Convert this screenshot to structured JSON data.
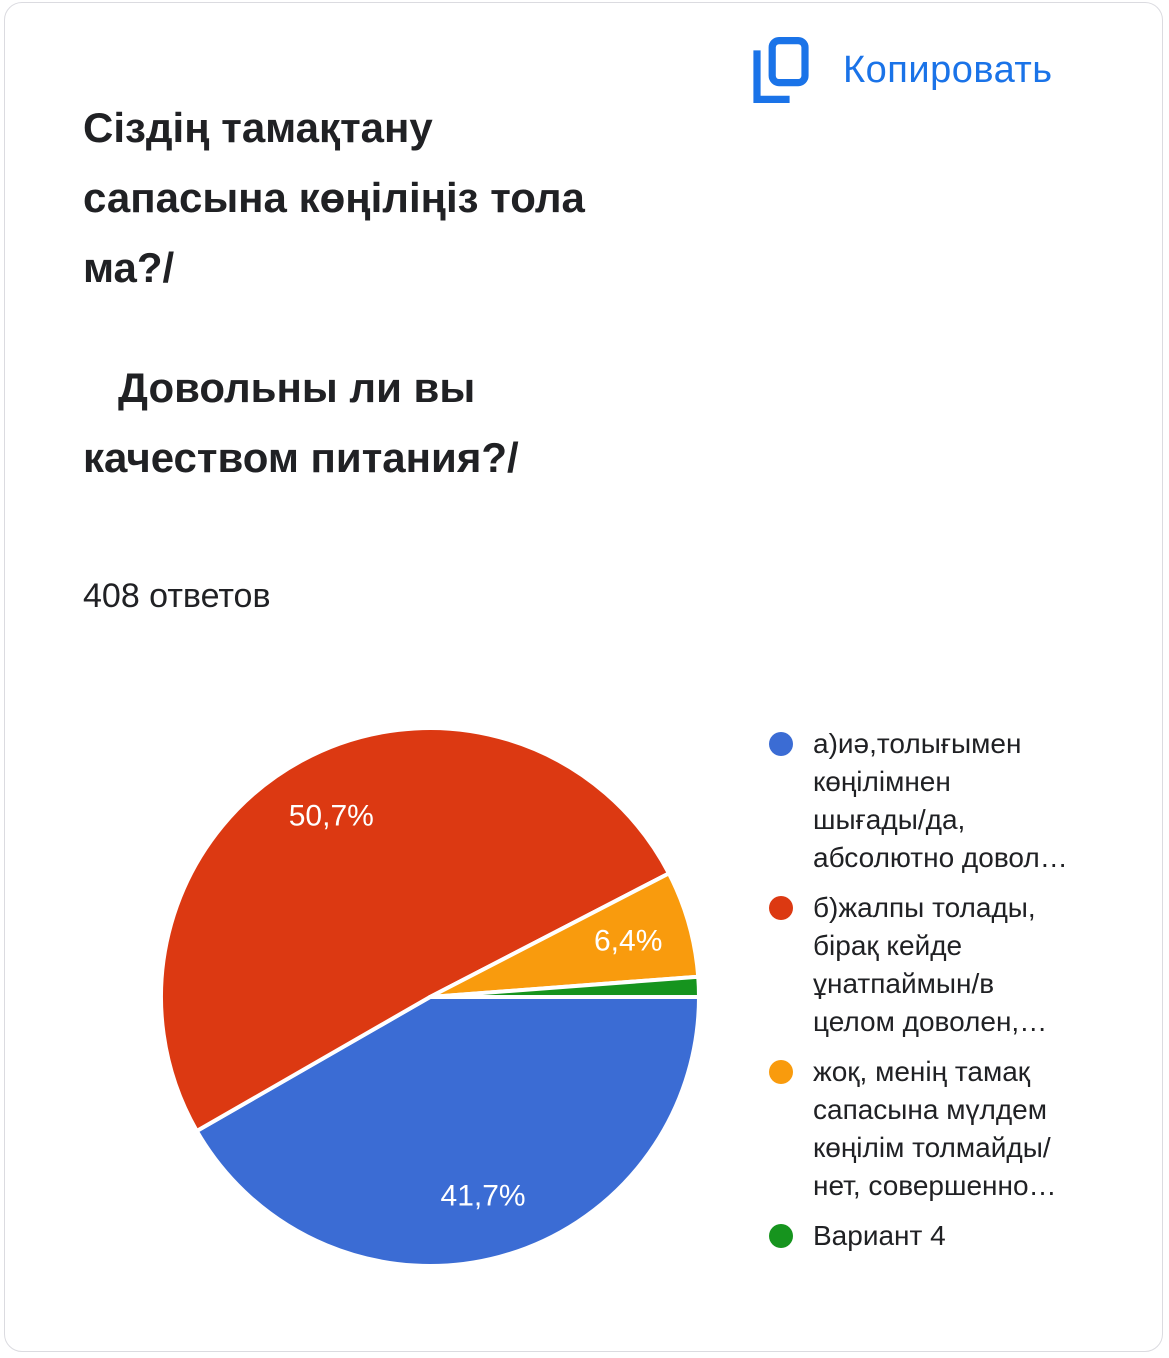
{
  "header": {
    "copy_button": "Копировать",
    "question_kk": "Сіздің тамақтану\nсапасына көңіліңіз тола\nма?/",
    "question_ru": "   Довольны ли вы\nкачеством питания?/",
    "responses_count": "408 ответов"
  },
  "colors": {
    "accent_blue": "#1a73e8",
    "text": "#202124",
    "card_border": "#dbdbe0",
    "slice_divider": "#ffffff"
  },
  "chart_data": {
    "type": "pie",
    "title": "Сіздің тамақтану сапасына көңіліңіз тола ма?/ Довольны ли вы качеством питания?/",
    "subtitle": "408 ответов",
    "total_responses": 408,
    "legend_position": "right",
    "start_angle": "east (3 o'clock), clockwise",
    "slices": [
      {
        "label": "а)иә,толығымен\nкөңілімнен\nшығады/да,\nабсолютно довол…",
        "value_pct": 41.7,
        "display_pct": "41,7%",
        "color": "#3B6CD4"
      },
      {
        "label": "б)жалпы толады,\nбірақ кейде\nұнатпаймын/в\nцелом доволен,…",
        "value_pct": 50.7,
        "display_pct": "50,7%",
        "color": "#DC3912"
      },
      {
        "label": "жоқ, менің тамақ\nсапасына мүлдем\nкөңілім толмайды/\nнет, совершенно…",
        "value_pct": 6.4,
        "display_pct": "6,4%",
        "color": "#F99B0D"
      },
      {
        "label": "Вариант 4",
        "value_pct": 1.2,
        "display_pct": "",
        "color": "#16941E"
      }
    ]
  }
}
